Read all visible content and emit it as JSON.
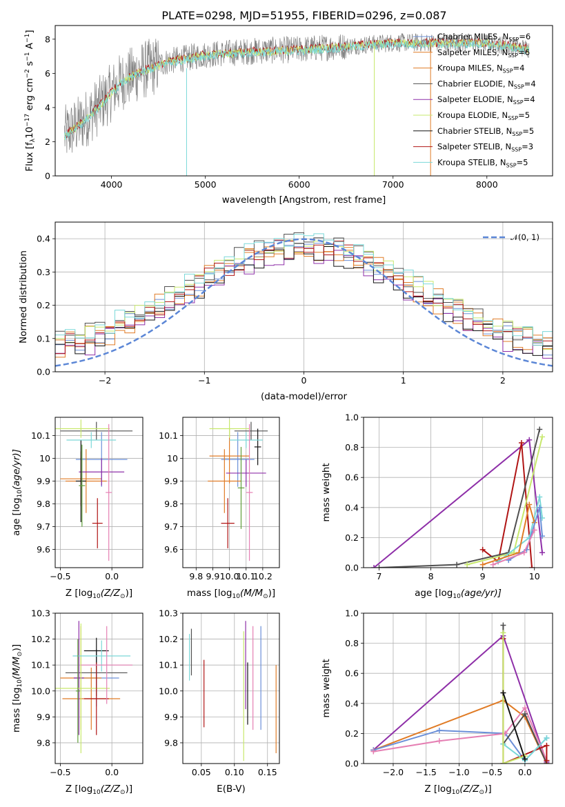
{
  "title": "PLATE=0298, MJD=51955, FIBERID=0296, z=0.087",
  "colors": {
    "c1": "#6a8fd8",
    "c2": "#e07b25",
    "c3": "#4f4f4f",
    "c4": "#8e2fa8",
    "c5": "#c7e86c",
    "c6": "#111111",
    "c7": "#b01414",
    "c8": "#7ad8d8",
    "grid": "#b0b0b0",
    "normal": "#5b86d6",
    "pink": "#e57fb3",
    "green": "#5f9e3a"
  },
  "chart_data": [
    {
      "id": "spectrum",
      "type": "line",
      "xlabel": "wavelength [Angstrom, rest frame]",
      "ylabel_text": "Flux [f",
      "ylabel_parts": [
        "λ",
        "10",
        "−17",
        " erg cm",
        "−2",
        " s",
        "−1",
        " A",
        "−1",
        "]"
      ],
      "xlim": [
        3400,
        8700
      ],
      "ylim": [
        0,
        8.8
      ],
      "xticks": [
        4000,
        5000,
        6000,
        7000,
        8000
      ],
      "yticks": [
        0,
        2,
        4,
        6,
        8
      ],
      "legend_position": "upper right",
      "legend": [
        {
          "label": "Chabrier MILES, N",
          "sub": "SSP",
          "value": "=6",
          "color": "c1"
        },
        {
          "label": "Salpeter MILES, N",
          "sub": "SSP",
          "value": "=6",
          "color": "c2"
        },
        {
          "label": "Kroupa MILES, N",
          "sub": "SSP",
          "value": "=4",
          "color": "c2"
        },
        {
          "label": "Chabrier ELODIE, N",
          "sub": "SSP",
          "value": "=4",
          "color": "c3"
        },
        {
          "label": "Salpeter ELODIE, N",
          "sub": "SSP",
          "value": "=4",
          "color": "c4"
        },
        {
          "label": "Kroupa ELODIE, N",
          "sub": "SSP",
          "value": "=5",
          "color": "c5"
        },
        {
          "label": "Chabrier STELIB, N",
          "sub": "SSP",
          "value": "=5",
          "color": "c6"
        },
        {
          "label": "Salpeter STELIB, N",
          "sub": "SSP",
          "value": "=3",
          "color": "c7"
        },
        {
          "label": "Kroupa STELIB, N",
          "sub": "SSP",
          "value": "=5",
          "color": "c8"
        }
      ],
      "continuum": [
        [
          3500,
          2.4
        ],
        [
          3700,
          3.2
        ],
        [
          3900,
          4.3
        ],
        [
          4100,
          5.5
        ],
        [
          4300,
          6.1
        ],
        [
          4600,
          6.7
        ],
        [
          5000,
          7.1
        ],
        [
          5500,
          7.3
        ],
        [
          6000,
          7.4
        ],
        [
          6500,
          7.6
        ],
        [
          7000,
          7.8
        ],
        [
          7500,
          7.8
        ],
        [
          8000,
          7.8
        ],
        [
          8500,
          7.4
        ]
      ],
      "vertical_spikes": [
        {
          "x": 4800,
          "ymax": 6.3,
          "color": "c8"
        },
        {
          "x": 6800,
          "ymax": 7.6,
          "color": "c5"
        },
        {
          "x": 7400,
          "ymax": 8.0,
          "color": "c2"
        }
      ]
    },
    {
      "id": "residuals",
      "type": "histogram",
      "xlabel": "(data-model)/error",
      "ylabel": "Normed distribution",
      "xlim": [
        -2.5,
        2.5
      ],
      "ylim": [
        0,
        0.45
      ],
      "xticks": [
        -2,
        -1,
        0,
        1,
        2
      ],
      "xticklabels": [
        "−2",
        "−1",
        "0",
        "1",
        "2"
      ],
      "yticks": [
        0.0,
        0.1,
        0.2,
        0.3,
        0.4
      ],
      "yticklabels": [
        "0.0",
        "0.1",
        "0.2",
        "0.3",
        "0.4"
      ],
      "normal_label": "𝒩(0, 1)",
      "bin_width": 0.1,
      "base_offsets": [
        0.0,
        0.01,
        -0.01,
        0.02,
        -0.02,
        0.015,
        -0.015,
        0.005,
        0.025
      ],
      "series_colors": [
        "c1",
        "c2",
        "c2",
        "c3",
        "c4",
        "c5",
        "c6",
        "c7",
        "c8"
      ]
    },
    {
      "id": "age-vs-Z",
      "type": "errorbar",
      "xlabel": "Z [log",
      "xlabel_sub": "10",
      "xlabel_rest": "(Z/Z",
      "xlabel_end": ")]",
      "ylabel": "age  [log",
      "ylabel_sub": "10",
      "ylabel_rest": "(age/yr)]",
      "xlim": [
        -0.55,
        0.3
      ],
      "ylim": [
        9.52,
        10.18
      ],
      "xticks": [
        -0.5,
        0.0
      ],
      "xticklabels": [
        "−0.5",
        "0.0"
      ],
      "yticks": [
        9.6,
        9.7,
        9.8,
        9.9,
        10.0,
        10.1
      ],
      "points": [
        {
          "x": -0.1,
          "xerr": 0.25,
          "y": 9.995,
          "yerr": 0.12,
          "color": "c1"
        },
        {
          "x": -0.25,
          "xerr": 0.2,
          "y": 9.9,
          "yerr": 0.14,
          "color": "c2"
        },
        {
          "x": -0.3,
          "xerr": 0.2,
          "y": 9.91,
          "yerr": 0.12,
          "color": "c2"
        },
        {
          "x": -0.15,
          "xerr": 0.35,
          "y": 10.12,
          "yerr": 0.04,
          "color": "c3"
        },
        {
          "x": -0.1,
          "xerr": 0.22,
          "y": 9.94,
          "yerr": 0.06,
          "color": "c4"
        },
        {
          "x": -0.3,
          "xerr": 0.28,
          "y": 10.13,
          "yerr": 0.04,
          "color": "c5"
        },
        {
          "x": -0.3,
          "xerr": 0.05,
          "y": 9.9,
          "yerr": 0.18,
          "color": "c6"
        },
        {
          "x": -0.14,
          "xerr": 0.05,
          "y": 9.715,
          "yerr": 0.11,
          "color": "c7"
        },
        {
          "x": -0.2,
          "xerr": 0.24,
          "y": 10.08,
          "yerr": 0.035,
          "color": "c8"
        },
        {
          "x": -0.03,
          "xerr": 0.03,
          "y": 9.85,
          "yerr": 0.3,
          "color": "pink"
        },
        {
          "x": -0.29,
          "xerr": 0.03,
          "y": 9.88,
          "yerr": 0.18,
          "color": "green"
        }
      ]
    },
    {
      "id": "age-vs-mass",
      "type": "errorbar",
      "xlabel": "mass [log",
      "xlabel_sub": "10",
      "xlabel_rest": "(M/M",
      "xlabel_end": ")]",
      "xlim": [
        9.72,
        10.3
      ],
      "ylim": [
        9.52,
        10.18
      ],
      "xticks": [
        9.8,
        9.9,
        10.0,
        10.1,
        10.2
      ],
      "xticklabels": [
        "9.8",
        "9.9",
        "10.0",
        "10.1",
        "10.2"
      ],
      "yticks": [
        9.6,
        9.7,
        9.8,
        9.9,
        10.0,
        10.1
      ],
      "points": [
        {
          "x": 10.05,
          "xerr": 0.1,
          "y": 9.995,
          "yerr": 0.12,
          "color": "c1"
        },
        {
          "x": 9.97,
          "xerr": 0.1,
          "y": 9.9,
          "yerr": 0.14,
          "color": "c2"
        },
        {
          "x": 10.0,
          "xerr": 0.12,
          "y": 10.01,
          "yerr": 0.12,
          "color": "c2"
        },
        {
          "x": 10.13,
          "xerr": 0.1,
          "y": 10.12,
          "yerr": 0.04,
          "color": "c3"
        },
        {
          "x": 10.1,
          "xerr": 0.12,
          "y": 9.935,
          "yerr": 0.06,
          "color": "c4"
        },
        {
          "x": 10.0,
          "xerr": 0.12,
          "y": 10.13,
          "yerr": 0.04,
          "color": "c5"
        },
        {
          "x": 10.17,
          "xerr": 0.02,
          "y": 10.05,
          "yerr": 0.08,
          "color": "c6"
        },
        {
          "x": 9.99,
          "xerr": 0.04,
          "y": 9.715,
          "yerr": 0.11,
          "color": "c7"
        },
        {
          "x": 10.1,
          "xerr": 0.1,
          "y": 10.08,
          "yerr": 0.035,
          "color": "c8"
        },
        {
          "x": 10.12,
          "xerr": 0.02,
          "y": 9.85,
          "yerr": 0.3,
          "color": "pink"
        },
        {
          "x": 10.07,
          "xerr": 0.02,
          "y": 9.87,
          "yerr": 0.18,
          "color": "green"
        }
      ]
    },
    {
      "id": "massweight-vs-age",
      "type": "line",
      "xlabel": "age  [log",
      "xlabel_sub": "10",
      "xlabel_rest": "(age/yr)]",
      "ylabel": "mass weight",
      "xlim": [
        6.7,
        10.35
      ],
      "ylim": [
        0,
        1.0
      ],
      "xticks": [
        7,
        8,
        9,
        10
      ],
      "yticks": [
        0.0,
        0.2,
        0.4,
        0.6,
        0.8,
        1.0
      ],
      "yticklabels": [
        "0.0",
        "0.2",
        "0.4",
        "0.6",
        "0.8",
        "1.0"
      ],
      "series": [
        {
          "color": "c4",
          "x": [
            6.9,
            9.9,
            10.15
          ],
          "y": [
            0.0,
            0.85,
            0.1
          ]
        },
        {
          "color": "c7",
          "x": [
            9.0,
            9.3,
            9.75,
            9.95
          ],
          "y": [
            0.12,
            0.04,
            0.83,
            0.0
          ]
        },
        {
          "color": "c3",
          "x": [
            7.0,
            8.5,
            9.5,
            10.1
          ],
          "y": [
            0.0,
            0.02,
            0.1,
            0.92
          ]
        },
        {
          "color": "c5",
          "x": [
            8.7,
            9.6,
            10.15
          ],
          "y": [
            0.02,
            0.1,
            0.87
          ]
        },
        {
          "color": "c8",
          "x": [
            9.3,
            9.9,
            10.1,
            10.15
          ],
          "y": [
            0.04,
            0.2,
            0.47,
            0.33
          ]
        },
        {
          "color": "c2",
          "x": [
            9.0,
            9.7,
            9.9,
            10.0
          ],
          "y": [
            0.02,
            0.1,
            0.42,
            0.3
          ]
        },
        {
          "color": "c1",
          "x": [
            9.5,
            9.85,
            10.1,
            10.15
          ],
          "y": [
            0.05,
            0.12,
            0.4,
            0.21
          ]
        },
        {
          "color": "pink",
          "x": [
            9.2,
            9.8,
            10.0
          ],
          "y": [
            0.02,
            0.1,
            0.25
          ]
        }
      ]
    },
    {
      "id": "mass-vs-Z",
      "type": "errorbar",
      "xlabel": "Z [log",
      "xlabel_sub": "10",
      "xlabel_rest": "(Z/Z",
      "xlabel_end": ")]",
      "ylabel": "mass [log",
      "ylabel_sub": "10",
      "ylabel_rest": "(M/M",
      "ylabel_end": ")]",
      "xlim": [
        -0.55,
        0.3
      ],
      "ylim": [
        9.72,
        10.3
      ],
      "xticks": [
        -0.5,
        0.0
      ],
      "xticklabels": [
        "−0.5",
        "0.0"
      ],
      "yticks": [
        9.8,
        9.9,
        10.0,
        10.1,
        10.2,
        10.3
      ],
      "yticklabels": [
        "9.8",
        "9.9",
        "10.0",
        "10.1",
        "10.2",
        "10.3"
      ],
      "points": [
        {
          "x": -0.15,
          "xerr": 0.22,
          "y": 10.05,
          "yerr": 0.11,
          "color": "c1"
        },
        {
          "x": -0.2,
          "xerr": 0.28,
          "y": 9.97,
          "yerr": 0.12,
          "color": "c2"
        },
        {
          "x": -0.3,
          "xerr": 0.2,
          "y": 10.05,
          "yerr": 0.2,
          "color": "c2"
        },
        {
          "x": -0.15,
          "xerr": 0.3,
          "y": 10.07,
          "yerr": 0.09,
          "color": "c3"
        },
        {
          "x": -0.32,
          "xerr": 0.05,
          "y": 10.05,
          "yerr": 0.22,
          "color": "c4"
        },
        {
          "x": -0.3,
          "xerr": 0.28,
          "y": 10.01,
          "yerr": 0.25,
          "color": "c5"
        },
        {
          "x": -0.15,
          "xerr": 0.12,
          "y": 10.155,
          "yerr": 0.05,
          "color": "c6"
        },
        {
          "x": -0.15,
          "xerr": 0.12,
          "y": 9.97,
          "yerr": 0.14,
          "color": "c7"
        },
        {
          "x": -0.1,
          "xerr": 0.28,
          "y": 10.135,
          "yerr": 0.06,
          "color": "c8"
        },
        {
          "x": -0.05,
          "xerr": 0.25,
          "y": 10.1,
          "yerr": 0.15,
          "color": "pink"
        },
        {
          "x": -0.33,
          "xerr": 0.02,
          "y": 10.0,
          "yerr": 0.2,
          "color": "green"
        }
      ]
    },
    {
      "id": "mass-vs-ebv",
      "type": "errorbar",
      "xlabel": "E(B-V)",
      "xlim": [
        0.022,
        0.168
      ],
      "ylim": [
        9.72,
        10.3
      ],
      "xticks": [
        0.05,
        0.1,
        0.15
      ],
      "xticklabels": [
        "0.05",
        "0.10",
        "0.15"
      ],
      "yticks": [
        9.8,
        9.9,
        10.0,
        10.1,
        10.2,
        10.3
      ],
      "yticklabels": [
        "9.8",
        "9.9",
        "10.0",
        "10.1",
        "10.2",
        "10.3"
      ],
      "points": [
        {
          "x": 0.14,
          "xerr": 0.0,
          "y": 10.05,
          "yerr": 0.2,
          "color": "c1"
        },
        {
          "x": 0.163,
          "xerr": 0.0,
          "y": 9.93,
          "yerr": 0.17,
          "color": "c2"
        },
        {
          "x": 0.035,
          "xerr": 0.0,
          "y": 10.15,
          "yerr": 0.09,
          "color": "c3"
        },
        {
          "x": 0.117,
          "xerr": 0.0,
          "y": 10.1,
          "yerr": 0.17,
          "color": "c4"
        },
        {
          "x": 0.114,
          "xerr": 0.0,
          "y": 9.98,
          "yerr": 0.25,
          "color": "c5"
        },
        {
          "x": 0.054,
          "xerr": 0.0,
          "y": 9.99,
          "yerr": 0.13,
          "color": "c7"
        },
        {
          "x": 0.032,
          "xerr": 0.0,
          "y": 10.13,
          "yerr": 0.09,
          "color": "c8"
        },
        {
          "x": 0.128,
          "xerr": 0.0,
          "y": 10.05,
          "yerr": 0.2,
          "color": "pink"
        },
        {
          "x": 0.12,
          "xerr": 0.0,
          "y": 9.99,
          "yerr": 0.12,
          "color": "c6"
        }
      ]
    },
    {
      "id": "massweight-vs-Z",
      "type": "line",
      "xlabel": "Z [log",
      "xlabel_sub": "10",
      "xlabel_rest": "(Z/Z",
      "xlabel_end": ")]",
      "ylabel": "mass weight",
      "xlim": [
        -2.45,
        0.42
      ],
      "ylim": [
        0,
        1.0
      ],
      "xticks": [
        -2.0,
        -1.5,
        -1.0,
        -0.5,
        0.0
      ],
      "xticklabels": [
        "−2.0",
        "−1.5",
        "−1.0",
        "−0.5",
        "0.0"
      ],
      "yticks": [
        0.0,
        0.2,
        0.4,
        0.6,
        0.8,
        1.0
      ],
      "yticklabels": [
        "0.0",
        "0.2",
        "0.4",
        "0.6",
        "0.8",
        "1.0"
      ],
      "series": [
        {
          "color": "c4",
          "x": [
            -2.3,
            -0.33,
            0.33
          ],
          "y": [
            0.09,
            0.85,
            0.01
          ]
        },
        {
          "color": "c2",
          "x": [
            -2.3,
            -0.33,
            0.0,
            0.33
          ],
          "y": [
            0.09,
            0.42,
            0.31,
            0.0
          ]
        },
        {
          "color": "c1",
          "x": [
            -2.3,
            -1.3,
            -0.3,
            0.0,
            0.33
          ],
          "y": [
            0.09,
            0.22,
            0.2,
            0.02,
            0.17
          ]
        },
        {
          "color": "pink",
          "x": [
            -2.3,
            -1.3,
            -0.3,
            0.0,
            0.33
          ],
          "y": [
            0.08,
            0.15,
            0.2,
            0.37,
            0.02
          ]
        },
        {
          "color": "c3",
          "x": [
            -0.33,
            -0.33,
            0.0,
            0.33
          ],
          "y": [
            0.92,
            0.13,
            0.33,
            0.0
          ]
        },
        {
          "color": "c7",
          "x": [
            -0.33,
            -0.33,
            0.33,
            0.33
          ],
          "y": [
            0.83,
            0.0,
            0.12,
            0.02
          ]
        },
        {
          "color": "c8",
          "x": [
            -0.33,
            0.0,
            0.33
          ],
          "y": [
            0.13,
            0.02,
            0.17
          ]
        },
        {
          "color": "c5",
          "x": [
            -0.33,
            -0.33,
            0.0
          ],
          "y": [
            0.87,
            0.0,
            0.05
          ]
        },
        {
          "color": "c6",
          "x": [
            -0.33,
            0.0
          ],
          "y": [
            0.47,
            0.03
          ]
        }
      ]
    }
  ]
}
